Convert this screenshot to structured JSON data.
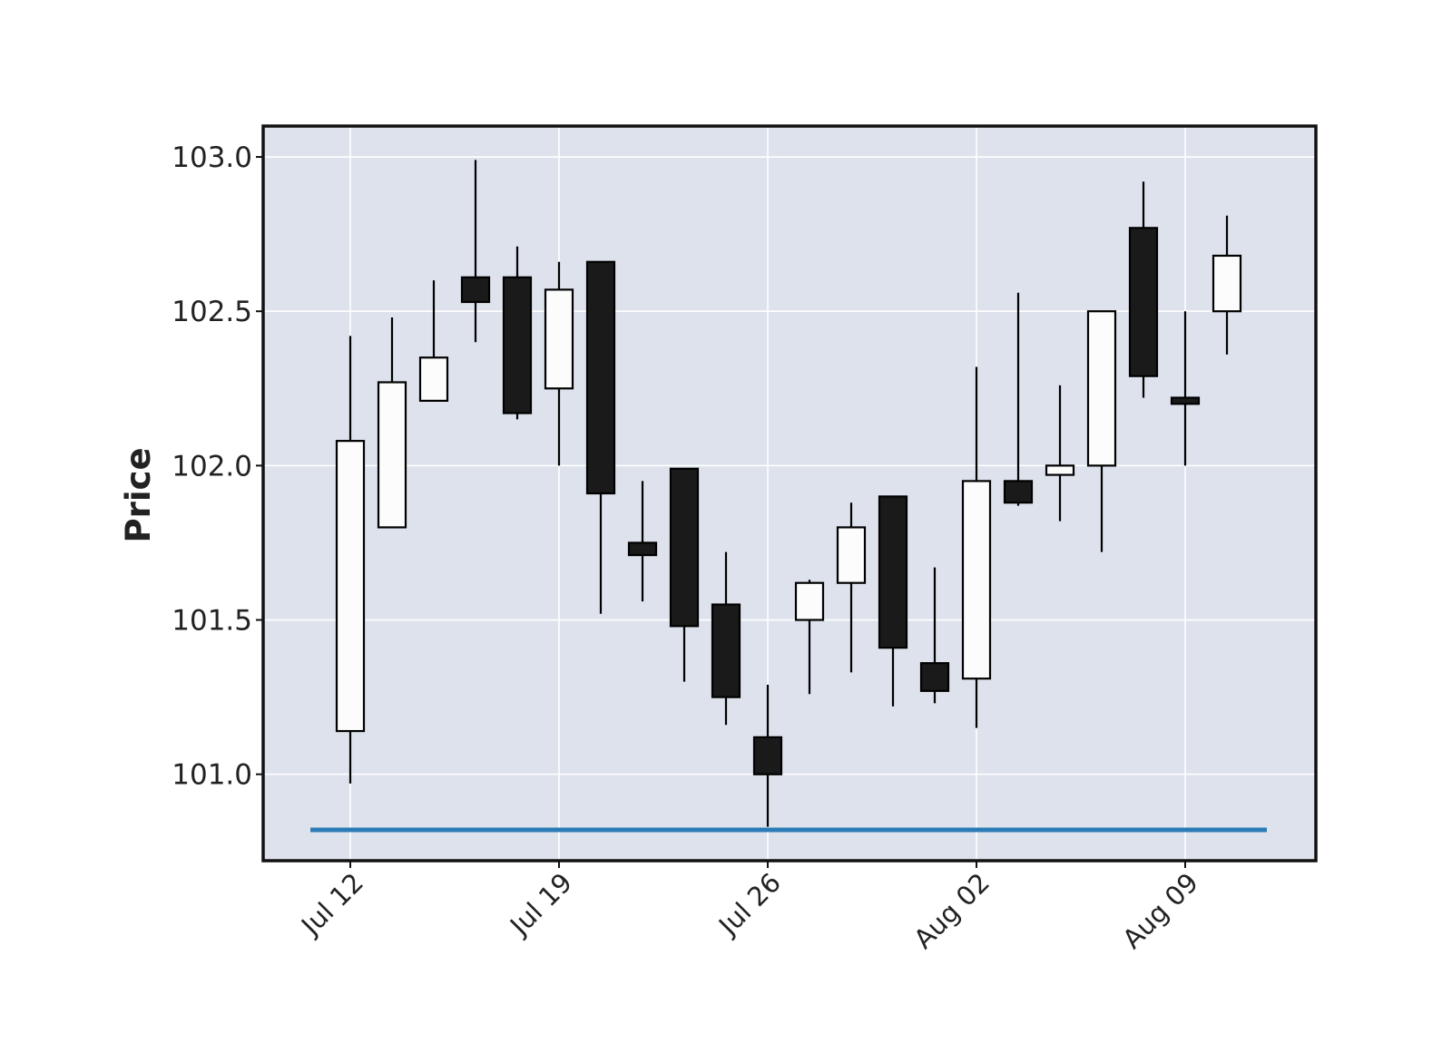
{
  "chart_data": {
    "type": "candlestick",
    "ylabel": "Price",
    "xlabel": "",
    "ylim": [
      100.72,
      103.1
    ],
    "grid": true,
    "colors": {
      "background": "#dde2ed",
      "grid": "#ffffff",
      "up": "#fcfcfd",
      "down": "#1a1a1a",
      "edge": "#000000",
      "hline": "#2c7bb6"
    },
    "y_ticks": [
      {
        "value": 101.0,
        "label": "101.0"
      },
      {
        "value": 101.5,
        "label": "101.5"
      },
      {
        "value": 102.0,
        "label": "102.0"
      },
      {
        "value": 102.5,
        "label": "102.5"
      },
      {
        "value": 103.0,
        "label": "103.0"
      }
    ],
    "x_ticks": [
      {
        "index": 0,
        "label": "Jul 12"
      },
      {
        "index": 5,
        "label": "Jul 19"
      },
      {
        "index": 10,
        "label": "Jul 26"
      },
      {
        "index": 15,
        "label": "Aug 02"
      },
      {
        "index": 20,
        "label": "Aug 09"
      }
    ],
    "hline": {
      "value": 100.82
    },
    "candles": [
      {
        "date": "2021-07-12",
        "open": 101.14,
        "high": 102.42,
        "low": 100.97,
        "close": 102.08
      },
      {
        "date": "2021-07-13",
        "open": 101.8,
        "high": 102.48,
        "low": 101.8,
        "close": 102.27
      },
      {
        "date": "2021-07-14",
        "open": 102.21,
        "high": 102.6,
        "low": 102.21,
        "close": 102.35
      },
      {
        "date": "2021-07-15",
        "open": 102.61,
        "high": 102.99,
        "low": 102.4,
        "close": 102.53
      },
      {
        "date": "2021-07-16",
        "open": 102.61,
        "high": 102.71,
        "low": 102.15,
        "close": 102.17
      },
      {
        "date": "2021-07-19",
        "open": 102.25,
        "high": 102.66,
        "low": 102.0,
        "close": 102.57
      },
      {
        "date": "2021-07-20",
        "open": 102.66,
        "high": 102.66,
        "low": 101.52,
        "close": 101.91
      },
      {
        "date": "2021-07-21",
        "open": 101.75,
        "high": 101.95,
        "low": 101.56,
        "close": 101.71
      },
      {
        "date": "2021-07-22",
        "open": 101.99,
        "high": 101.99,
        "low": 101.3,
        "close": 101.48
      },
      {
        "date": "2021-07-23",
        "open": 101.55,
        "high": 101.72,
        "low": 101.16,
        "close": 101.25
      },
      {
        "date": "2021-07-26",
        "open": 101.12,
        "high": 101.29,
        "low": 100.83,
        "close": 101.0
      },
      {
        "date": "2021-07-27",
        "open": 101.5,
        "high": 101.63,
        "low": 101.26,
        "close": 101.62
      },
      {
        "date": "2021-07-28",
        "open": 101.62,
        "high": 101.88,
        "low": 101.33,
        "close": 101.8
      },
      {
        "date": "2021-07-29",
        "open": 101.9,
        "high": 101.9,
        "low": 101.22,
        "close": 101.41
      },
      {
        "date": "2021-07-30",
        "open": 101.36,
        "high": 101.67,
        "low": 101.23,
        "close": 101.27
      },
      {
        "date": "2021-08-02",
        "open": 101.31,
        "high": 102.32,
        "low": 101.15,
        "close": 101.95
      },
      {
        "date": "2021-08-03",
        "open": 101.95,
        "high": 102.56,
        "low": 101.87,
        "close": 101.88
      },
      {
        "date": "2021-08-04",
        "open": 101.97,
        "high": 102.26,
        "low": 101.82,
        "close": 102.0
      },
      {
        "date": "2021-08-05",
        "open": 102.0,
        "high": 102.5,
        "low": 101.72,
        "close": 102.5
      },
      {
        "date": "2021-08-06",
        "open": 102.77,
        "high": 102.92,
        "low": 102.22,
        "close": 102.29
      },
      {
        "date": "2021-08-09",
        "open": 102.22,
        "high": 102.5,
        "low": 102.0,
        "close": 102.2
      },
      {
        "date": "2021-08-10",
        "open": 102.5,
        "high": 102.81,
        "low": 102.36,
        "close": 102.68
      }
    ]
  }
}
